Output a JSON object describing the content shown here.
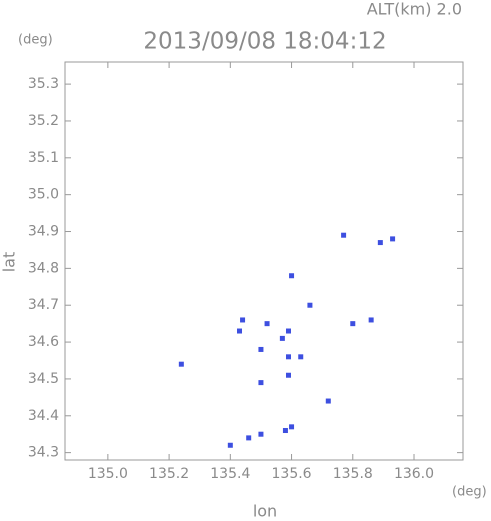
{
  "chart_data": {
    "type": "scatter",
    "title": "2013/09/08 18:04:12",
    "subtitle": "ALT(km) 2.0",
    "y_unit": "(deg)",
    "x_unit": "(deg)",
    "x_label": "lon",
    "y_label": "lat",
    "color": "#3d4fe0",
    "x": [
      135.77,
      135.89,
      135.93,
      135.86,
      135.8,
      135.66,
      135.6,
      135.43,
      135.44,
      135.52,
      135.59,
      135.57,
      135.59,
      135.5,
      135.59,
      135.5,
      135.63,
      135.72,
      135.24,
      135.4,
      135.46,
      135.5,
      135.58,
      135.6
    ],
    "values": [
      34.89,
      34.87,
      34.88,
      34.66,
      34.65,
      34.7,
      34.78,
      34.63,
      34.66,
      34.65,
      34.63,
      34.61,
      34.56,
      34.58,
      34.51,
      34.49,
      34.56,
      34.44,
      34.54,
      34.32,
      34.34,
      34.35,
      34.36,
      34.37
    ],
    "xlim": [
      134.86,
      136.16
    ],
    "ylim": [
      34.28,
      35.36
    ],
    "xticks": [
      {
        "value": 135,
        "label": "135.0"
      },
      135.2,
      135.4,
      135.6,
      135.8,
      {
        "value": 136,
        "label": "136.0"
      }
    ],
    "yticks": [
      34.3,
      34.4,
      34.5,
      34.6,
      34.7,
      34.8,
      34.9,
      {
        "value": 35,
        "label": "35.0"
      },
      35.1,
      35.2,
      35.3
    ]
  }
}
